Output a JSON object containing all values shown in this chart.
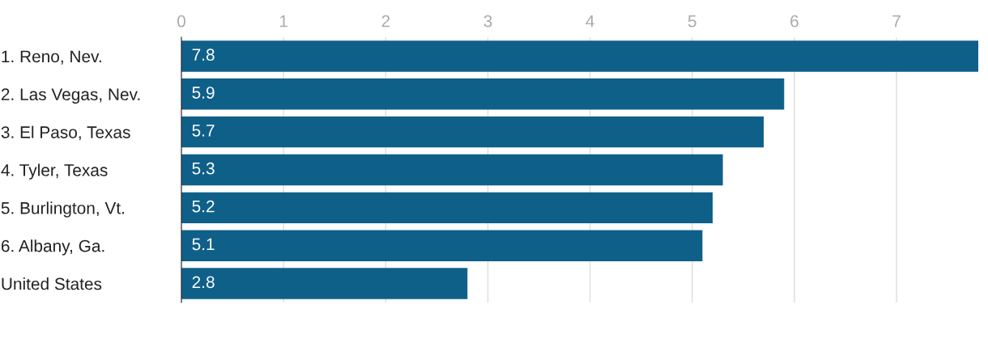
{
  "chart_data": {
    "type": "bar",
    "orientation": "horizontal",
    "categories": [
      "1. Reno, Nev.",
      "2. Las Vegas, Nev.",
      "3. El Paso, Texas",
      "4. Tyler, Texas",
      "5. Burlington, Vt.",
      "6. Albany, Ga.",
      "United States"
    ],
    "values": [
      7.8,
      5.9,
      5.7,
      5.3,
      5.2,
      5.1,
      2.8
    ],
    "color": "#0f6089",
    "xlim": [
      0,
      7.8
    ],
    "xticks": [
      0,
      1,
      2,
      3,
      4,
      5,
      6,
      7
    ],
    "grid": "x",
    "data_labels": true
  }
}
